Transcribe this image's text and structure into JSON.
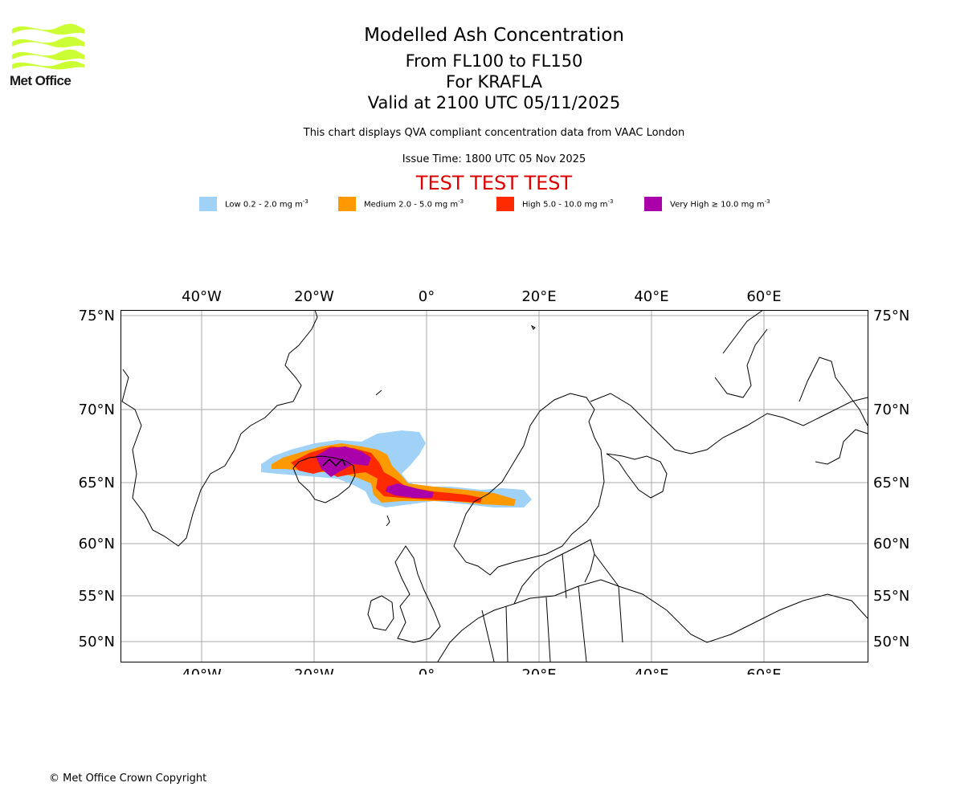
{
  "logo": {
    "text": "Met Office",
    "colors": {
      "waves": "#ccff33",
      "text": "#1a1a1a"
    }
  },
  "header": {
    "title": "Modelled Ash Concentration",
    "flight_levels": "From FL100 to FL150",
    "volcano": "For KRAFLA",
    "valid": "Valid at 2100 UTC 05/11/2025",
    "compliance": "This chart displays QVA compliant concentration data from VAAC London",
    "issue_time": "Issue Time: 1800 UTC 05 Nov 2025",
    "test_banner": "TEST TEST TEST"
  },
  "legend": [
    {
      "label": "Low 0.2 - 2.0 mg m",
      "sup": "-3",
      "color": "#a0d2f8"
    },
    {
      "label": "Medium 2.0 - 5.0 mg m",
      "sup": "-3",
      "color": "#ff9900"
    },
    {
      "label": "High 5.0 - 10.0 mg m",
      "sup": "-3",
      "color": "#ff2a00"
    },
    {
      "label": "Very High ≥ 10.0 mg m",
      "sup": "-3",
      "color": "#aa00aa"
    }
  ],
  "map": {
    "lon_labels": [
      "40°W",
      "20°W",
      "0°",
      "20°E",
      "40°E",
      "60°E"
    ],
    "lat_labels": [
      "75°N",
      "70°N",
      "65°N",
      "60°N",
      "55°N",
      "50°N"
    ],
    "grid_color": "#aaaaaa"
  },
  "footer": {
    "copyright": "© Met Office Crown Copyright"
  }
}
